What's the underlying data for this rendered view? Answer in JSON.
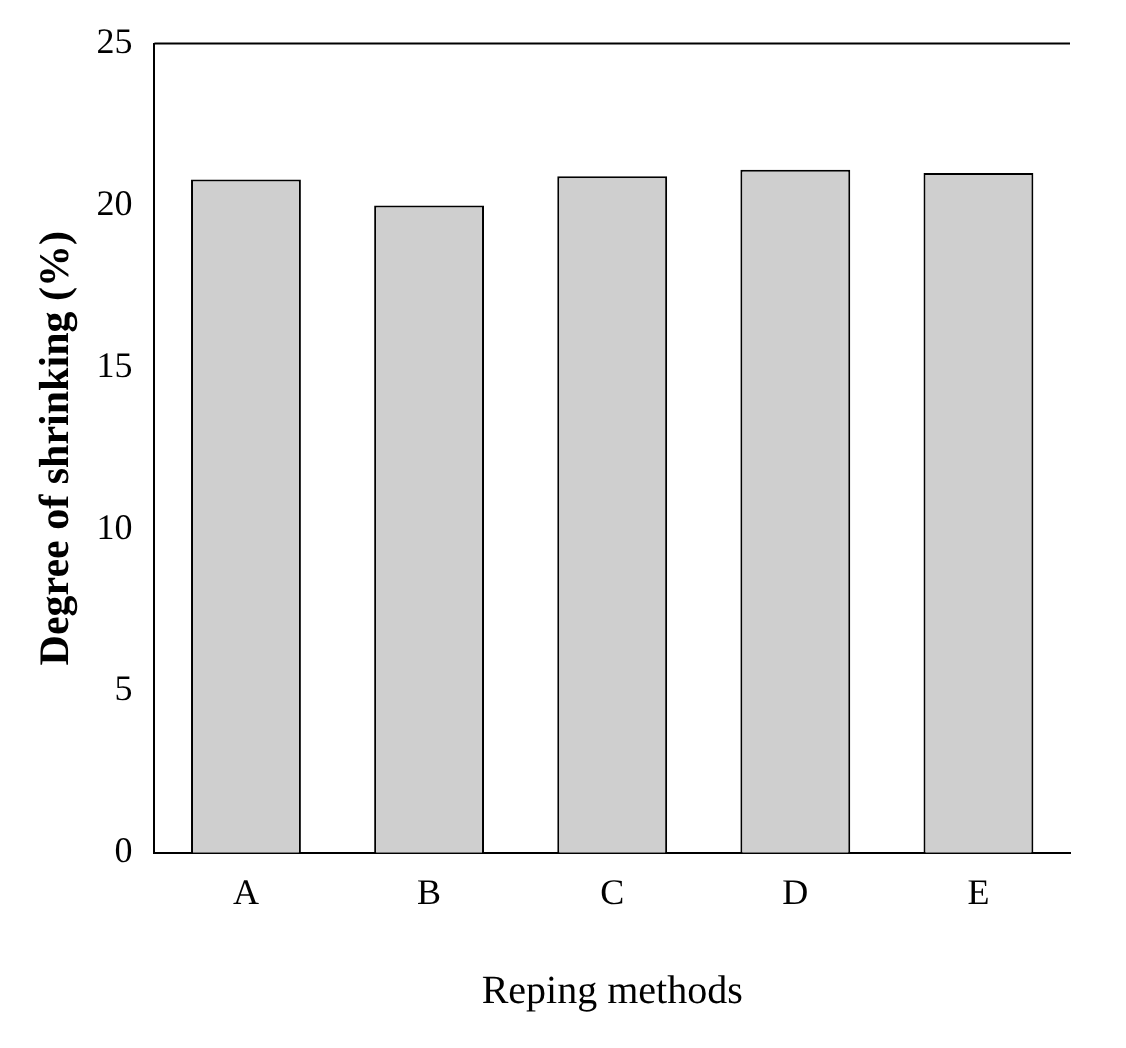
{
  "chart_data": {
    "type": "bar",
    "xlabel": "Reping methods",
    "ylabel": "Degree of shrinking (%)",
    "categories": [
      "A",
      "B",
      "C",
      "D",
      "E"
    ],
    "values": [
      20.8,
      20.0,
      20.9,
      21.1,
      21.0
    ],
    "color": "#cfcfcf",
    "ylim": [
      0,
      25
    ],
    "yticks": [
      0,
      5,
      10,
      15,
      20,
      25
    ],
    "grid": false,
    "legend": false
  }
}
